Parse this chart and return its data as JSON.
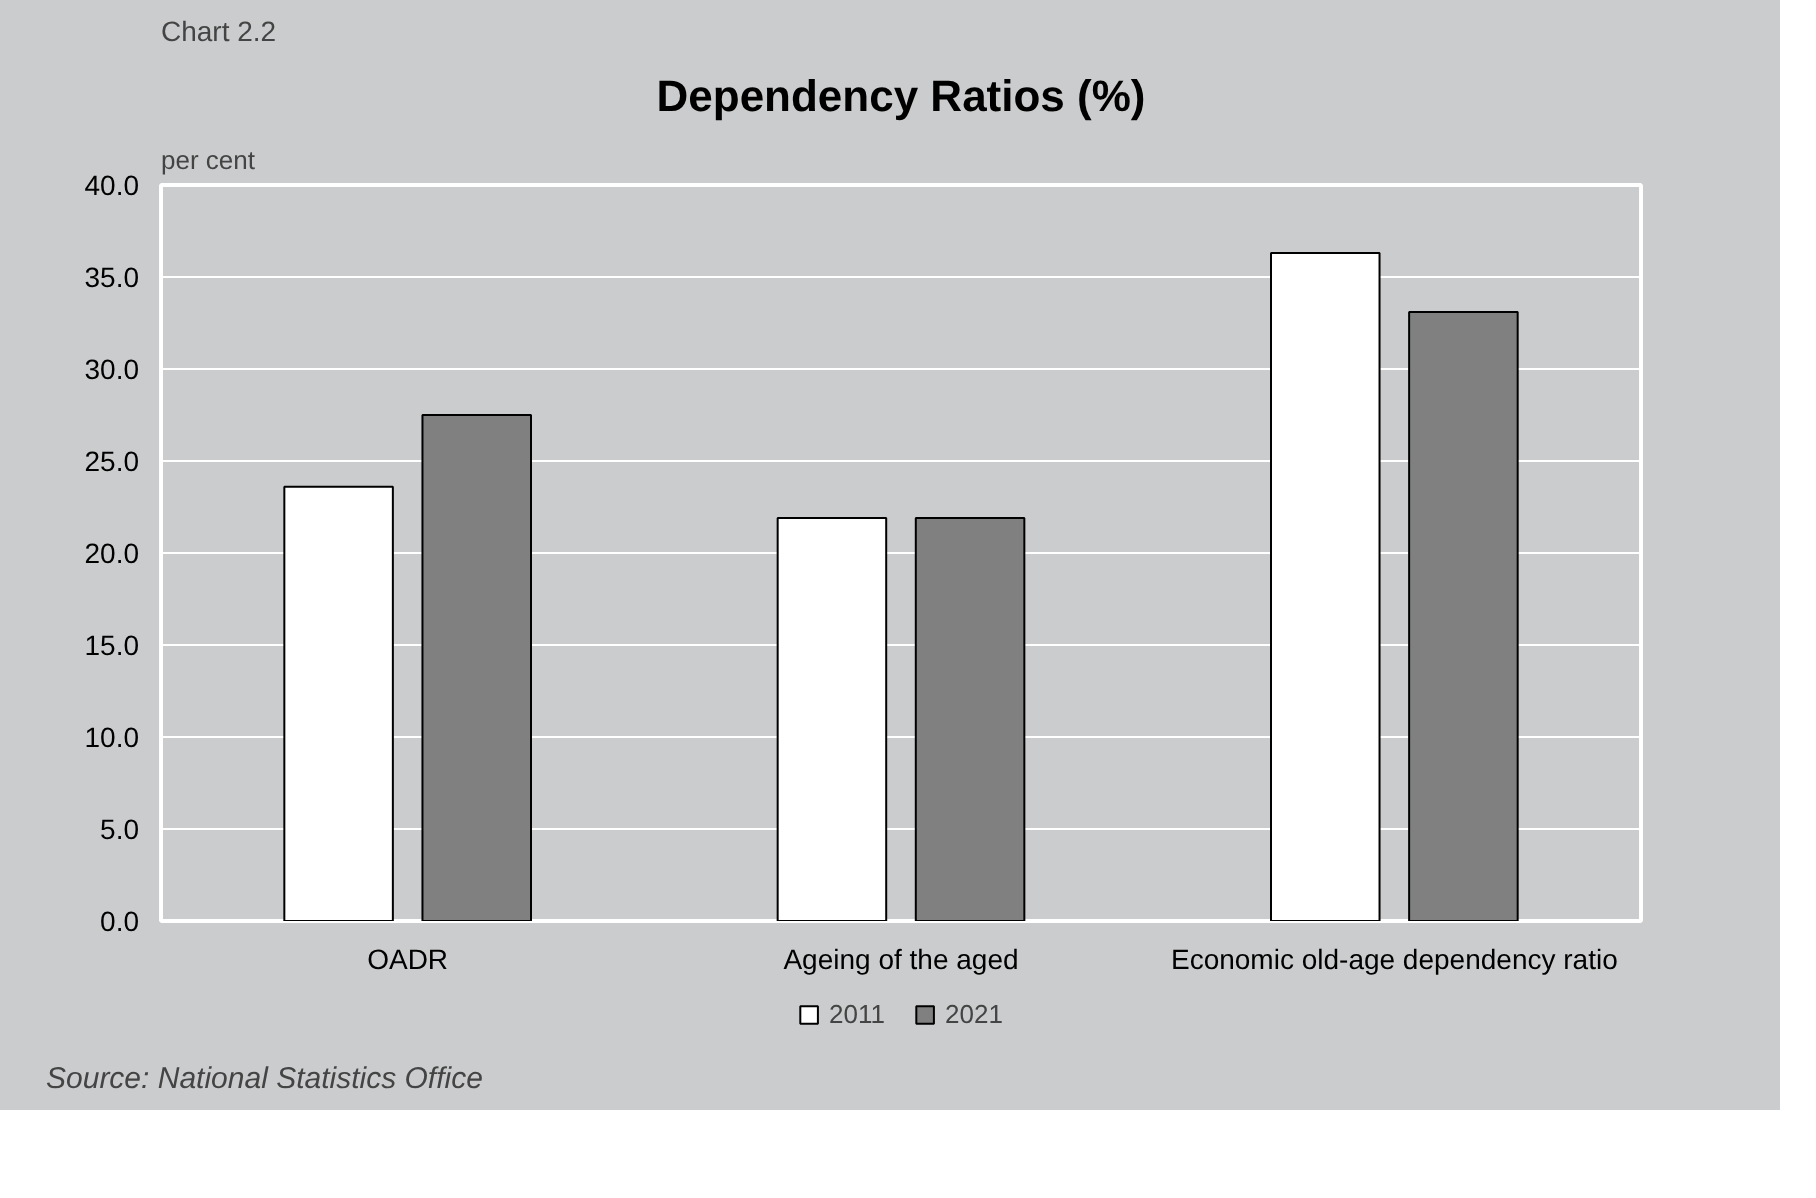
{
  "chart_data": {
    "type": "bar",
    "title": "Dependency Ratios (%)",
    "ylabel": "per cent",
    "categories": [
      "OADR",
      "Ageing of the aged",
      "Economic old-age dependency ratio"
    ],
    "series": [
      {
        "name": "2011",
        "color": "#ffffff",
        "values": [
          23.6,
          21.9,
          36.3
        ]
      },
      {
        "name": "2021",
        "color": "#808080",
        "values": [
          27.5,
          21.9,
          33.1
        ]
      }
    ],
    "ylim": [
      0,
      40
    ],
    "yticks": [
      {
        "value": 0,
        "label": "0.0"
      },
      {
        "value": 5,
        "label": "5.0"
      },
      {
        "value": 10,
        "label": "10.0"
      },
      {
        "value": 15,
        "label": "15.0"
      },
      {
        "value": 20,
        "label": "20.0"
      },
      {
        "value": 25,
        "label": "25.0"
      },
      {
        "value": 30,
        "label": "30.0"
      },
      {
        "value": 35,
        "label": "35.0"
      },
      {
        "value": 40,
        "label": "40.0"
      }
    ],
    "grid": "y",
    "legend": "bottom",
    "annotations": [
      "Chart 2.2",
      "Source: National Statistics Office"
    ]
  }
}
